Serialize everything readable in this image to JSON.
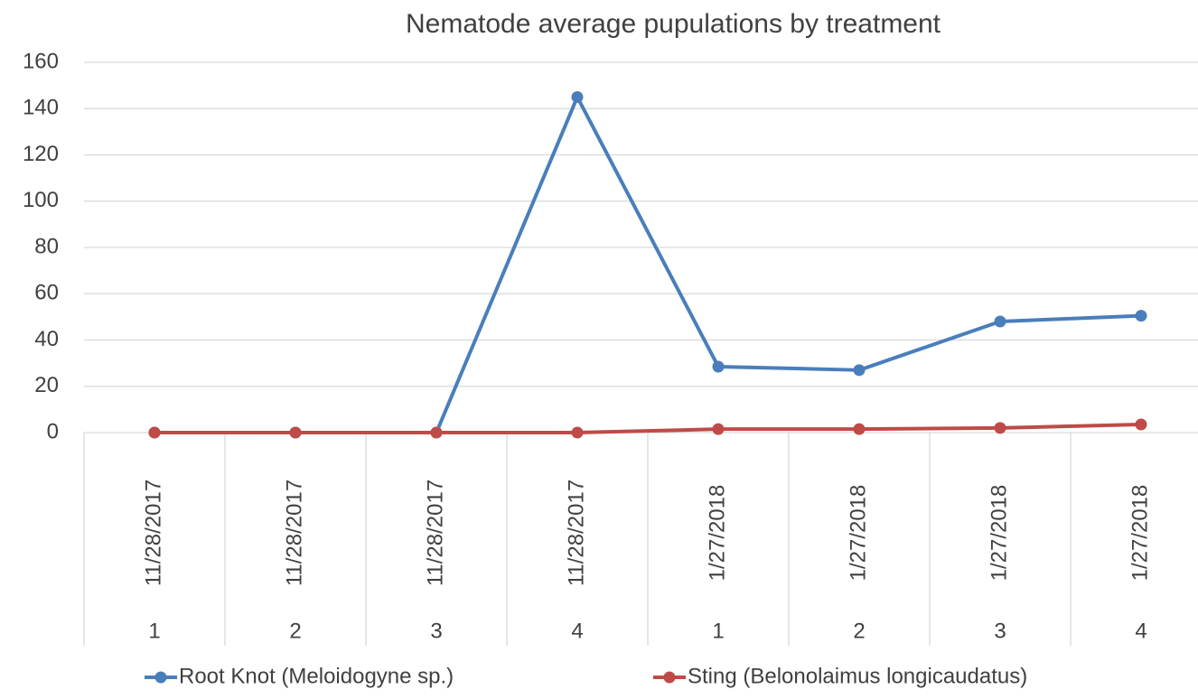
{
  "chart_data": {
    "type": "line",
    "title": "Nematode average pupulations by treatment",
    "category_dates": [
      "11/28/2017",
      "11/28/2017",
      "11/28/2017",
      "11/28/2017",
      "1/27/2018",
      "1/27/2018",
      "1/27/2018",
      "1/27/2018"
    ],
    "categories": [
      "1",
      "2",
      "3",
      "4",
      "1",
      "2",
      "3",
      "4"
    ],
    "series": [
      {
        "name": "Root Knot (Meloidogyne sp.)",
        "color": "#4a7ebb",
        "values": [
          0,
          0,
          0,
          145,
          28.5,
          27,
          48,
          50.5
        ]
      },
      {
        "name": "Sting (Belonolaimus longicaudatus)",
        "color": "#be4b48",
        "values": [
          0,
          0,
          0,
          0,
          1.5,
          1.5,
          2,
          3.5
        ]
      }
    ],
    "ylim": [
      0,
      160
    ],
    "yticks": [
      0,
      20,
      40,
      60,
      80,
      100,
      120,
      140,
      160
    ],
    "grid": true,
    "legend": "bottom"
  }
}
